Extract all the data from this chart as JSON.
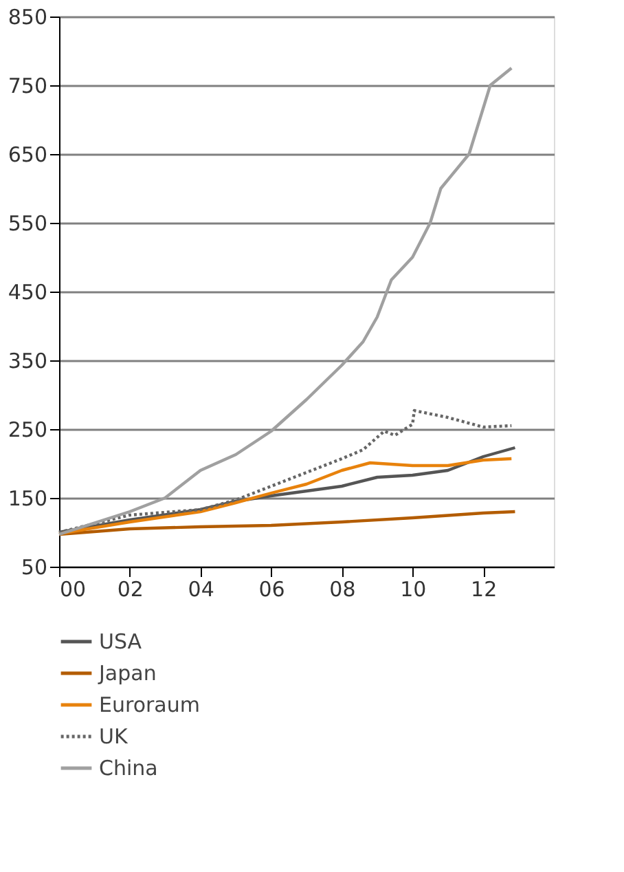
{
  "chart_data": {
    "type": "line",
    "xlim": [
      0,
      14
    ],
    "xticks": [
      {
        "value": 0,
        "label": "00"
      },
      {
        "value": 2,
        "label": "02"
      },
      {
        "value": 4,
        "label": "04"
      },
      {
        "value": 6,
        "label": "06"
      },
      {
        "value": 8,
        "label": "08"
      },
      {
        "value": 10,
        "label": "10"
      },
      {
        "value": 12,
        "label": "12"
      }
    ],
    "ylim": [
      50,
      850
    ],
    "yticks": [
      50,
      150,
      250,
      350,
      450,
      550,
      650,
      750,
      850
    ],
    "grid": "y",
    "legend": "bottom",
    "series": [
      {
        "name": "USA",
        "color": "#555555",
        "line_style": "solid",
        "x": [
          0,
          2,
          4,
          5,
          6,
          7,
          8,
          9,
          10,
          11,
          12,
          12.9
        ],
        "values": [
          100,
          118,
          133,
          145,
          153,
          160,
          167,
          180,
          183,
          190,
          210,
          223
        ]
      },
      {
        "name": "Japan",
        "color": "#b35c00",
        "line_style": "solid",
        "x": [
          0,
          2,
          4,
          6,
          8,
          10,
          12,
          12.9
        ],
        "values": [
          97,
          105,
          108,
          110,
          115,
          121,
          128,
          130
        ]
      },
      {
        "name": "Euroraum",
        "color": "#e8820c",
        "line_style": "solid",
        "x": [
          0,
          2,
          4,
          5,
          6,
          7,
          8,
          8.8,
          10,
          11,
          12,
          12.8
        ],
        "values": [
          98,
          115,
          130,
          143,
          157,
          170,
          190,
          201,
          197,
          197,
          205,
          207
        ]
      },
      {
        "name": "UK",
        "color": "#666666",
        "line_style": "dotted",
        "x": [
          0,
          2,
          4,
          5,
          6,
          7,
          8,
          8.6,
          9.2,
          9.5,
          10,
          10.05,
          11,
          12,
          12.8
        ],
        "values": [
          100,
          125,
          133,
          147,
          167,
          187,
          207,
          220,
          247,
          241,
          257,
          277,
          267,
          253,
          255
        ]
      },
      {
        "name": "China",
        "color": "#a0a0a0",
        "line_style": "solid",
        "x": [
          0,
          2,
          3,
          4,
          5,
          6,
          7,
          8,
          8.6,
          9.0,
          9.4,
          10,
          10.5,
          10.8,
          11.6,
          12.2,
          12.8
        ],
        "values": [
          97,
          130,
          150,
          190,
          213,
          247,
          293,
          343,
          377,
          413,
          467,
          500,
          550,
          600,
          650,
          750,
          775
        ]
      }
    ]
  }
}
